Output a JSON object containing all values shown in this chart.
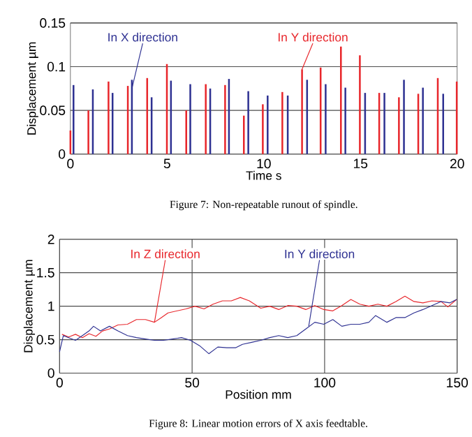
{
  "chart_data": [
    {
      "type": "bar",
      "xlabel": "Time  s",
      "ylabel": "Displacement  µm",
      "xlim": [
        0,
        20
      ],
      "ylim": [
        0,
        0.15
      ],
      "xticks": [
        0,
        5,
        10,
        15,
        20
      ],
      "yticks": [
        0,
        0.05,
        0.1,
        0.15
      ],
      "grid": "y",
      "series": [
        {
          "color": "#2e3192",
          "x": [
            0.16,
            1.16,
            2.18,
            3.18,
            4.2,
            5.2,
            6.2,
            7.23,
            8.2,
            9.2,
            10.2,
            11.24,
            12.24,
            13.2,
            14.22,
            15.24,
            16.24,
            17.25,
            18.23,
            19.28
          ],
          "values": [
            0.079,
            0.074,
            0.07,
            0.085,
            0.065,
            0.084,
            0.08,
            0.075,
            0.086,
            0.072,
            0.067,
            0.067,
            0.085,
            0.08,
            0.076,
            0.07,
            0.07,
            0.085,
            0.076,
            0.069
          ]
        },
        {
          "color": "#e8262b",
          "x": [
            0.0,
            0.93,
            1.97,
            2.97,
            3.97,
            4.99,
            5.99,
            7.0,
            8.0,
            8.97,
            9.95,
            10.96,
            11.98,
            12.94,
            13.99,
            14.97,
            15.97,
            16.99,
            17.99,
            19.0,
            19.98
          ],
          "values": [
            0.027,
            0.05,
            0.083,
            0.078,
            0.087,
            0.103,
            0.05,
            0.08,
            0.079,
            0.044,
            0.057,
            0.071,
            0.097,
            0.099,
            0.123,
            0.113,
            0.07,
            0.065,
            0.069,
            0.087,
            0.083
          ]
        }
      ],
      "annotations": [
        {
          "text": "In X direction",
          "x": 3.18,
          "y": 0.075
        },
        {
          "text": "In Y direction",
          "x": 11.98,
          "y": 0.097
        },
        "Figure 7: Non-repeatable runout of spindle."
      ]
    },
    {
      "type": "line",
      "xlabel": "Position  mm",
      "ylabel": "Displacement  µm",
      "xlim": [
        0,
        150
      ],
      "ylim": [
        0,
        2
      ],
      "xticks": [
        0,
        50,
        100,
        150
      ],
      "yticks": [
        0,
        0.5,
        1,
        1.5,
        2
      ],
      "grid": true,
      "series": [
        {
          "color": "#e8262b",
          "x": [
            0.9,
            3.4,
            6,
            8.6,
            11.1,
            13.7,
            16.2,
            18.8,
            22,
            25.6,
            29,
            32.4,
            35.8,
            38.4,
            40.9,
            44.3,
            47.7,
            51.1,
            54.5,
            57.9,
            61.4,
            64.8,
            68.2,
            71.6,
            75.9,
            79.3,
            82.7,
            86.1,
            89.5,
            92.9,
            96.3,
            99.7,
            103.1,
            106.5,
            109.9,
            113.3,
            116.7,
            120.1,
            123.5,
            126.9,
            130.3,
            133.7,
            137.1,
            140.5,
            143.9,
            146.5,
            149.8
          ],
          "values": [
            0.58,
            0.54,
            0.58,
            0.53,
            0.59,
            0.55,
            0.63,
            0.66,
            0.72,
            0.73,
            0.8,
            0.8,
            0.76,
            0.83,
            0.9,
            0.93,
            0.96,
            1.0,
            0.96,
            1.03,
            1.08,
            1.08,
            1.13,
            1.08,
            0.97,
            1.0,
            0.95,
            1.01,
            1.0,
            0.95,
            1.01,
            0.95,
            0.93,
            1.01,
            1.1,
            1.03,
            1.0,
            1.03,
            1.0,
            1.07,
            1.15,
            1.07,
            1.05,
            1.08,
            1.07,
            0.99,
            1.1
          ]
        },
        {
          "color": "#2e3192",
          "x": [
            0,
            1.4,
            3.4,
            6,
            8.6,
            11.1,
            12.8,
            15.4,
            18.8,
            22,
            25.6,
            29,
            32.4,
            35.8,
            39.2,
            42.6,
            46,
            49.4,
            52.8,
            56.3,
            59.7,
            63.1,
            66.5,
            69,
            72.5,
            75.9,
            79.3,
            82.7,
            86.1,
            89.5,
            92.9,
            96.3,
            99.7,
            103.1,
            106.5,
            109.9,
            113.3,
            116.7,
            119.2,
            123.5,
            126.9,
            130.3,
            133.7,
            137.1,
            140.5,
            143.9,
            147.3,
            149.8
          ],
          "values": [
            0.32,
            0.56,
            0.53,
            0.49,
            0.56,
            0.63,
            0.7,
            0.63,
            0.7,
            0.63,
            0.56,
            0.53,
            0.51,
            0.49,
            0.49,
            0.51,
            0.53,
            0.49,
            0.41,
            0.29,
            0.39,
            0.38,
            0.38,
            0.43,
            0.46,
            0.49,
            0.53,
            0.56,
            0.53,
            0.56,
            0.66,
            0.76,
            0.73,
            0.8,
            0.7,
            0.73,
            0.73,
            0.76,
            0.86,
            0.76,
            0.83,
            0.83,
            0.9,
            0.95,
            1.01,
            1.07,
            1.05,
            1.1
          ]
        }
      ],
      "annotations": [
        {
          "text": "In Z direction",
          "x": 35.8,
          "y": 0.76
        },
        {
          "text": "In Y direction",
          "x": 94,
          "y": 0.7
        },
        "Figure 8: Linear motion errors of X axis feedtable."
      ]
    }
  ]
}
